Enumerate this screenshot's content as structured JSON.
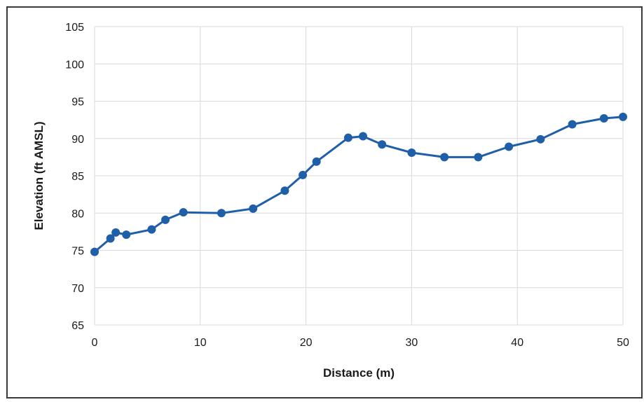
{
  "chart_data": {
    "type": "line",
    "title": "",
    "xlabel": "Distance  (m)",
    "ylabel": "Elevation  (ft AMSL)",
    "xlim": [
      0,
      50
    ],
    "ylim": [
      65,
      105
    ],
    "xticks": [
      0,
      10,
      20,
      30,
      40,
      50
    ],
    "yticks": [
      65,
      70,
      75,
      80,
      85,
      90,
      95,
      100,
      105
    ],
    "grid": true,
    "legend": "none",
    "line_color": "#1f5fa8",
    "marker_color": "#1f5fa8",
    "grid_color": "#d9d9d9",
    "series": [
      {
        "x": [
          0,
          1.5,
          2,
          3,
          5.4,
          6.7,
          8.4,
          12,
          15,
          18,
          19.7,
          21,
          24,
          25.4,
          27.2,
          30,
          33.1,
          36.3,
          39.2,
          42.2,
          45.2,
          48.2,
          50
        ],
        "y": [
          74.8,
          76.6,
          77.4,
          77.1,
          77.8,
          79.1,
          80.1,
          80.0,
          80.6,
          83.0,
          85.1,
          86.9,
          90.1,
          90.3,
          89.2,
          88.1,
          87.5,
          87.5,
          88.9,
          89.9,
          91.9,
          92.7,
          92.9
        ]
      }
    ]
  }
}
